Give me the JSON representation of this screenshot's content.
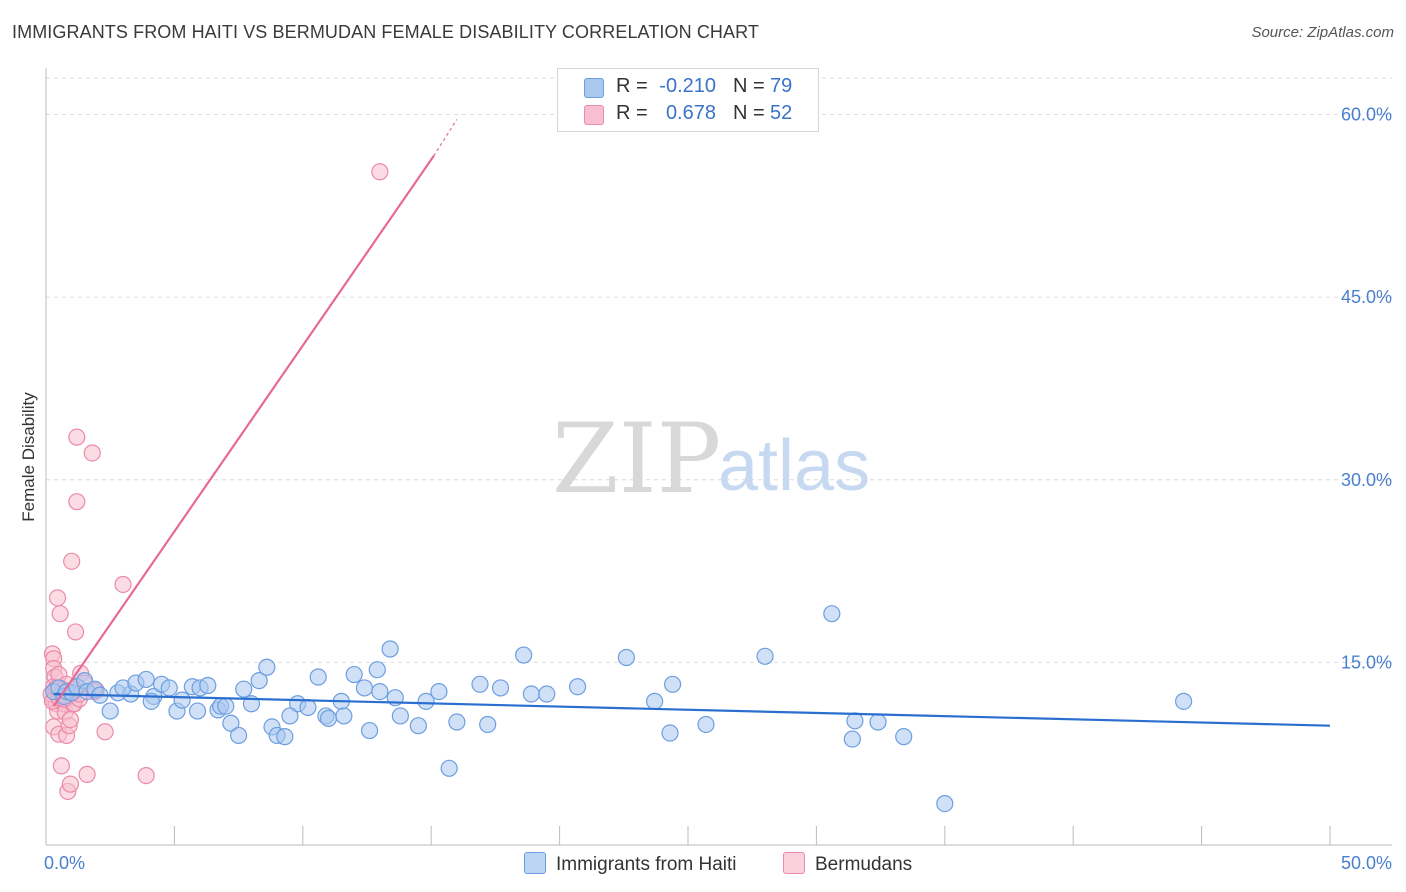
{
  "title": "IMMIGRANTS FROM HAITI VS BERMUDAN FEMALE DISABILITY CORRELATION CHART",
  "source": "Source: ZipAtlas.com",
  "watermark": {
    "zip": "ZIP",
    "atlas": "atlas"
  },
  "legend": {
    "rows": [
      {
        "r_label": "R =",
        "r_value": "-0.210",
        "n_label": "N =",
        "n_value": "79",
        "color": "#a9c8f0",
        "border": "#6d9ee0"
      },
      {
        "r_label": "R =",
        "r_value": "0.678",
        "n_label": "N =",
        "n_value": "52",
        "color": "#f8bfd0",
        "border": "#ec8aa8"
      }
    ]
  },
  "bottom_legend": [
    {
      "label": "Immigrants from Haiti",
      "color": "#bcd5f5",
      "border": "#6d9ee0"
    },
    {
      "label": "Bermudans",
      "color": "#fbd0dd",
      "border": "#ec8aa8"
    }
  ],
  "chart_data": {
    "type": "scatter",
    "title": "IMMIGRANTS FROM HAITI VS BERMUDAN FEMALE DISABILITY CORRELATION CHART",
    "xlabel": "",
    "ylabel": "Female Disability",
    "xlim": [
      0,
      50
    ],
    "ylim": [
      0,
      63
    ],
    "x_tick_labels": [
      "0.0%",
      "50.0%"
    ],
    "y_ticks": [
      15,
      30,
      45,
      60
    ],
    "y_tick_labels": [
      "15.0%",
      "30.0%",
      "45.0%",
      "60.0%"
    ],
    "grid": true,
    "series": [
      {
        "name": "Immigrants from Haiti",
        "color": "#6d9ee0",
        "fill": "#a9c8f0",
        "line_color": "#2a6fd0",
        "trend": {
          "x": [
            0.3,
            50
          ],
          "y": [
            12.4,
            9.8
          ]
        },
        "points": [
          [
            0.3,
            12.6
          ],
          [
            0.5,
            12.9
          ],
          [
            0.7,
            12.2
          ],
          [
            0.8,
            12.6
          ],
          [
            1.0,
            12.5
          ],
          [
            1.2,
            13.0
          ],
          [
            1.5,
            13.5
          ],
          [
            1.6,
            12.6
          ],
          [
            1.9,
            12.8
          ],
          [
            2.1,
            12.3
          ],
          [
            2.5,
            11.0
          ],
          [
            2.8,
            12.5
          ],
          [
            3.3,
            12.4
          ],
          [
            3.0,
            12.9
          ],
          [
            3.5,
            13.3
          ],
          [
            3.9,
            13.6
          ],
          [
            4.2,
            12.2
          ],
          [
            4.1,
            11.8
          ],
          [
            4.5,
            13.2
          ],
          [
            4.8,
            12.9
          ],
          [
            5.1,
            11.0
          ],
          [
            5.3,
            11.9
          ],
          [
            5.7,
            13.0
          ],
          [
            5.9,
            11.0
          ],
          [
            6.0,
            12.9
          ],
          [
            6.3,
            13.1
          ],
          [
            6.7,
            11.1
          ],
          [
            6.8,
            11.4
          ],
          [
            7.0,
            11.4
          ],
          [
            7.2,
            10.0
          ],
          [
            7.5,
            9.0
          ],
          [
            7.7,
            12.8
          ],
          [
            8.0,
            11.6
          ],
          [
            8.3,
            13.5
          ],
          [
            8.6,
            14.6
          ],
          [
            8.8,
            9.7
          ],
          [
            9.0,
            9.0
          ],
          [
            9.3,
            8.9
          ],
          [
            9.8,
            11.6
          ],
          [
            9.5,
            10.6
          ],
          [
            10.2,
            11.3
          ],
          [
            10.6,
            13.8
          ],
          [
            10.9,
            10.6
          ],
          [
            11.0,
            10.4
          ],
          [
            11.5,
            11.8
          ],
          [
            11.6,
            10.6
          ],
          [
            12.0,
            14.0
          ],
          [
            12.4,
            12.9
          ],
          [
            12.6,
            9.4
          ],
          [
            12.9,
            14.4
          ],
          [
            13.4,
            16.1
          ],
          [
            13.6,
            12.1
          ],
          [
            13.8,
            10.6
          ],
          [
            14.5,
            9.8
          ],
          [
            14.8,
            11.8
          ],
          [
            15.3,
            12.6
          ],
          [
            15.7,
            6.3
          ],
          [
            16.0,
            10.1
          ],
          [
            16.9,
            13.2
          ],
          [
            17.2,
            9.9
          ],
          [
            17.7,
            12.9
          ],
          [
            18.6,
            15.6
          ],
          [
            18.9,
            12.4
          ],
          [
            19.5,
            12.4
          ],
          [
            20.7,
            13.0
          ],
          [
            22.6,
            15.4
          ],
          [
            23.7,
            11.8
          ],
          [
            24.3,
            9.2
          ],
          [
            24.4,
            13.2
          ],
          [
            25.7,
            9.9
          ],
          [
            28.0,
            15.5
          ],
          [
            30.6,
            19.0
          ],
          [
            31.4,
            8.7
          ],
          [
            31.5,
            10.2
          ],
          [
            32.4,
            10.1
          ],
          [
            33.4,
            8.9
          ],
          [
            35.0,
            3.4
          ],
          [
            44.3,
            11.8
          ],
          [
            13.0,
            12.6
          ]
        ]
      },
      {
        "name": "Bermudans",
        "color": "#ec8aa8",
        "fill": "#f8bfd0",
        "line_color": "#e86a93",
        "trend": {
          "x": [
            0.3,
            15.1
          ],
          "y": [
            11.4,
            56.6
          ]
        },
        "trend_ext": {
          "x": [
            15.1,
            16.0
          ],
          "y": [
            56.6,
            59.6
          ]
        },
        "points": [
          [
            0.25,
            15.7
          ],
          [
            0.3,
            15.3
          ],
          [
            0.3,
            14.5
          ],
          [
            0.35,
            13.8
          ],
          [
            0.3,
            13.0
          ],
          [
            0.3,
            12.6
          ],
          [
            0.35,
            12.3
          ],
          [
            0.3,
            11.9
          ],
          [
            0.4,
            11.6
          ],
          [
            0.3,
            9.7
          ],
          [
            0.45,
            20.3
          ],
          [
            0.55,
            19.0
          ],
          [
            0.5,
            14.0
          ],
          [
            0.45,
            11.0
          ],
          [
            0.5,
            9.1
          ],
          [
            0.6,
            6.5
          ],
          [
            0.65,
            12.8
          ],
          [
            0.7,
            11.6
          ],
          [
            0.75,
            10.9
          ],
          [
            0.8,
            13.2
          ],
          [
            0.8,
            9.0
          ],
          [
            0.85,
            4.4
          ],
          [
            0.9,
            9.8
          ],
          [
            0.95,
            10.3
          ],
          [
            0.95,
            5.0
          ],
          [
            1.0,
            12.3
          ],
          [
            1.05,
            11.6
          ],
          [
            1.0,
            23.3
          ],
          [
            1.1,
            11.6
          ],
          [
            1.15,
            17.5
          ],
          [
            1.2,
            28.2
          ],
          [
            1.2,
            33.5
          ],
          [
            1.3,
            12.0
          ],
          [
            1.3,
            12.4
          ],
          [
            1.35,
            14.1
          ],
          [
            1.5,
            13.3
          ],
          [
            1.6,
            5.8
          ],
          [
            1.8,
            32.2
          ],
          [
            1.9,
            12.6
          ],
          [
            1.95,
            12.7
          ],
          [
            2.3,
            9.3
          ],
          [
            3.0,
            21.4
          ],
          [
            3.9,
            5.7
          ],
          [
            13.0,
            55.3
          ],
          [
            0.2,
            12.4
          ],
          [
            0.25,
            11.8
          ],
          [
            0.4,
            12.9
          ],
          [
            0.5,
            12.1
          ],
          [
            0.6,
            12.4
          ],
          [
            0.7,
            12.0
          ],
          [
            0.9,
            12.6
          ],
          [
            1.1,
            12.8
          ]
        ]
      }
    ]
  }
}
